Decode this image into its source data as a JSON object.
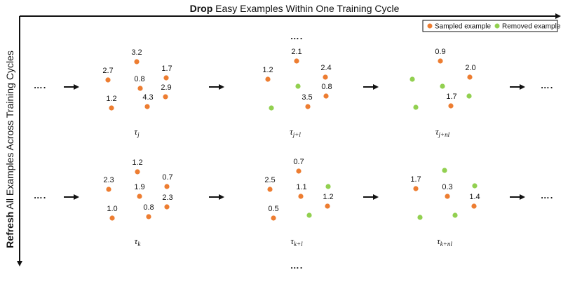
{
  "titles": {
    "top_bold": "Drop",
    "top_rest": " Easy Examples Within One Training Cycle",
    "left_bold": "Refresh",
    "left_rest": " All Examples Across Training Cycles"
  },
  "legend": {
    "sampled": "Sampled example",
    "removed": "Removed example"
  },
  "colors": {
    "sampled": "#ED7D31",
    "removed": "#92D050",
    "ink": "#111111"
  },
  "ellipsis": "….",
  "rows": [
    {
      "groups": [
        {
          "tau_base": "τ",
          "tau_sub": "j",
          "dots": [
            {
              "kind": "sampled",
              "label": "3.2"
            },
            {
              "kind": "sampled",
              "label": "2.7"
            },
            {
              "kind": "sampled",
              "label": "1.7"
            },
            {
              "kind": "sampled",
              "label": "0.8"
            },
            {
              "kind": "sampled",
              "label": "2.9"
            },
            {
              "kind": "sampled",
              "label": "4.3"
            },
            {
              "kind": "sampled",
              "label": "1.2"
            }
          ]
        },
        {
          "tau_base": "τ",
          "tau_sub": "j+l",
          "dots": [
            {
              "kind": "sampled",
              "label": "2.1"
            },
            {
              "kind": "sampled",
              "label": "1.2"
            },
            {
              "kind": "sampled",
              "label": "2.4"
            },
            {
              "kind": "removed",
              "label": ""
            },
            {
              "kind": "sampled",
              "label": "0.8"
            },
            {
              "kind": "sampled",
              "label": "3.5"
            },
            {
              "kind": "removed",
              "label": ""
            }
          ]
        },
        {
          "tau_base": "τ",
          "tau_sub": "j+nl",
          "dots": [
            {
              "kind": "sampled",
              "label": "0.9"
            },
            {
              "kind": "removed",
              "label": ""
            },
            {
              "kind": "sampled",
              "label": "2.0"
            },
            {
              "kind": "removed",
              "label": ""
            },
            {
              "kind": "removed",
              "label": ""
            },
            {
              "kind": "sampled",
              "label": "1.7"
            },
            {
              "kind": "removed",
              "label": ""
            }
          ]
        }
      ]
    },
    {
      "groups": [
        {
          "tau_base": "τ",
          "tau_sub": "k",
          "dots": [
            {
              "kind": "sampled",
              "label": "1.2"
            },
            {
              "kind": "sampled",
              "label": "2.3"
            },
            {
              "kind": "sampled",
              "label": "0.7"
            },
            {
              "kind": "sampled",
              "label": "1.9"
            },
            {
              "kind": "sampled",
              "label": "2.3"
            },
            {
              "kind": "sampled",
              "label": "0.8"
            },
            {
              "kind": "sampled",
              "label": "1.0"
            }
          ]
        },
        {
          "tau_base": "τ",
          "tau_sub": "k+l",
          "dots": [
            {
              "kind": "sampled",
              "label": "0.7"
            },
            {
              "kind": "sampled",
              "label": "2.5"
            },
            {
              "kind": "removed",
              "label": ""
            },
            {
              "kind": "sampled",
              "label": "1.1"
            },
            {
              "kind": "sampled",
              "label": "1.2"
            },
            {
              "kind": "removed",
              "label": ""
            },
            {
              "kind": "sampled",
              "label": "0.5"
            }
          ]
        },
        {
          "tau_base": "τ",
          "tau_sub": "k+nl",
          "dots": [
            {
              "kind": "removed",
              "label": ""
            },
            {
              "kind": "sampled",
              "label": "1.7"
            },
            {
              "kind": "removed",
              "label": ""
            },
            {
              "kind": "sampled",
              "label": "0.3"
            },
            {
              "kind": "sampled",
              "label": "1.4"
            },
            {
              "kind": "removed",
              "label": ""
            },
            {
              "kind": "removed",
              "label": ""
            }
          ]
        }
      ]
    }
  ]
}
